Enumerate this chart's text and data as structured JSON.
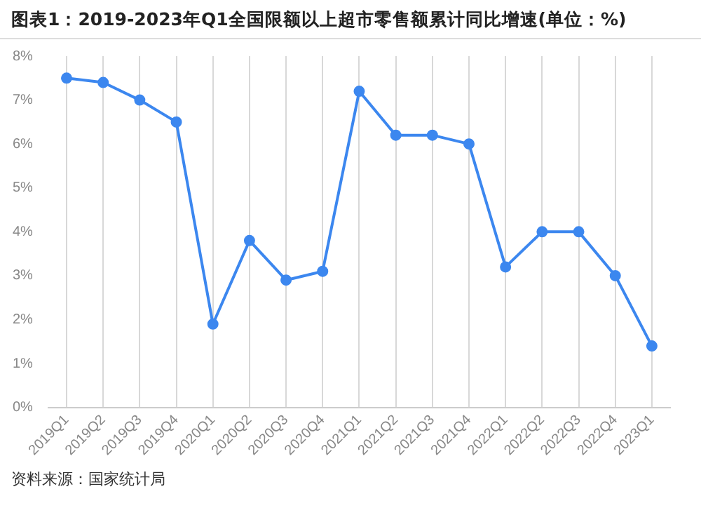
{
  "chart_data": {
    "type": "line",
    "title": "图表1：2019-2023年Q1全国限额以上超市零售额累计同比增速(单位：%)",
    "categories": [
      "2019Q1",
      "2019Q2",
      "2019Q3",
      "2019Q4",
      "2020Q1",
      "2020Q2",
      "2020Q3",
      "2020Q4",
      "2021Q1",
      "2021Q2",
      "2021Q3",
      "2021Q4",
      "2022Q1",
      "2022Q2",
      "2022Q3",
      "2022Q4",
      "2023Q1"
    ],
    "series": [
      {
        "color": "#3c87ef",
        "values": [
          7.5,
          7.4,
          7.0,
          6.5,
          1.9,
          3.8,
          2.9,
          3.1,
          7.2,
          6.2,
          6.2,
          6.0,
          3.2,
          4.0,
          4.0,
          3.0,
          1.4
        ]
      }
    ],
    "ylim": [
      0,
      8
    ],
    "yticks": [
      {
        "value": 0,
        "label": "0%"
      },
      {
        "value": 1,
        "label": "1%"
      },
      {
        "value": 2,
        "label": "2%"
      },
      {
        "value": 3,
        "label": "3%"
      },
      {
        "value": 4,
        "label": "4%"
      },
      {
        "value": 5,
        "label": "5%"
      },
      {
        "value": 6,
        "label": "6%"
      },
      {
        "value": 7,
        "label": "7%"
      },
      {
        "value": 8,
        "label": "8%"
      }
    ],
    "grid": "x",
    "marker": "circle",
    "line_style": "solid",
    "legend": false,
    "annotations": [
      "资料来源：国家统计局"
    ]
  }
}
